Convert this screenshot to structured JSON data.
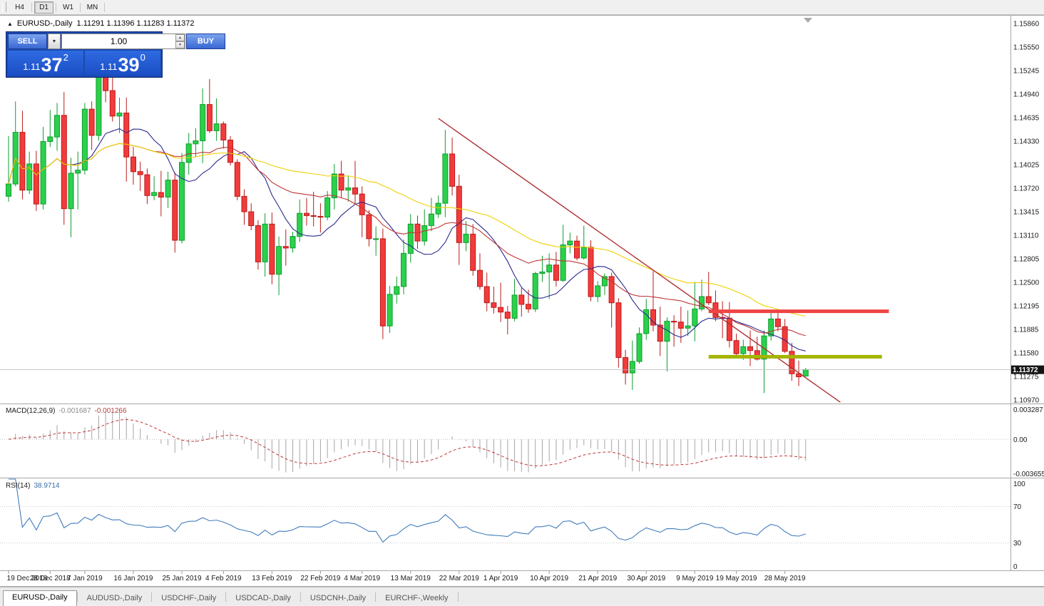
{
  "toolbar": {
    "timeframes": [
      "H4",
      "D1",
      "W1",
      "MN"
    ],
    "active_timeframe": "D1"
  },
  "chart_header": {
    "symbol": "EURUSD-,Daily",
    "ohlc": "1.11291 1.11396 1.11283 1.11372"
  },
  "icons": {
    "panel_toggle": "▲",
    "dropdown": "▼",
    "spin_up": "▲",
    "spin_down": "▼"
  },
  "trade_panel": {
    "sell_label": "SELL",
    "buy_label": "BUY",
    "volume": "1.00",
    "sell_price": {
      "big": "1.11",
      "mid": "37",
      "sup": "2"
    },
    "buy_price": {
      "big": "1.11",
      "mid": "39",
      "sup": "0"
    }
  },
  "macd_panel": {
    "name": "MACD(12,26,9)",
    "main_value": "-0.001687",
    "signal_value": "-0.001266",
    "axis": [
      "0.003287",
      "0.00",
      "-0.003655"
    ]
  },
  "rsi_panel": {
    "name": "RSI(14)",
    "value": "38.9714",
    "axis": [
      "100",
      "70",
      "30",
      "0"
    ]
  },
  "tabs": [
    {
      "label": "EURUSD-,Daily",
      "active": true
    },
    {
      "label": "AUDUSD-,Daily",
      "active": false
    },
    {
      "label": "USDCHF-,Daily",
      "active": false
    },
    {
      "label": "USDCAD-,Daily",
      "active": false
    },
    {
      "label": "USDCNH-,Daily",
      "active": false
    },
    {
      "label": "EURCHF-,Weekly",
      "active": false
    }
  ],
  "chart_data": {
    "type": "candlestick",
    "title": "EURUSD-,Daily",
    "ylim": [
      1.1097,
      1.1586
    ],
    "price_ticks": [
      "1.15860",
      "1.15550",
      "1.15245",
      "1.14940",
      "1.14635",
      "1.14330",
      "1.14025",
      "1.13720",
      "1.13415",
      "1.13110",
      "1.12805",
      "1.12500",
      "1.12195",
      "1.11885",
      "1.11580",
      "1.11275",
      "1.10970"
    ],
    "date_ticks": [
      {
        "i": 0,
        "label": "19 Dec 2018"
      },
      {
        "i": 6,
        "label": "28 Dec 2018"
      },
      {
        "i": 11,
        "label": "7 Jan 2019"
      },
      {
        "i": 18,
        "label": "16 Jan 2019"
      },
      {
        "i": 25,
        "label": "25 Jan 2019"
      },
      {
        "i": 31,
        "label": "4 Feb 2019"
      },
      {
        "i": 38,
        "label": "13 Feb 2019"
      },
      {
        "i": 45,
        "label": "22 Feb 2019"
      },
      {
        "i": 51,
        "label": "4 Mar 2019"
      },
      {
        "i": 58,
        "label": "13 Mar 2019"
      },
      {
        "i": 65,
        "label": "22 Mar 2019"
      },
      {
        "i": 71,
        "label": "1 Apr 2019"
      },
      {
        "i": 78,
        "label": "10 Apr 2019"
      },
      {
        "i": 85,
        "label": "21 Apr 2019"
      },
      {
        "i": 92,
        "label": "30 Apr 2019"
      },
      {
        "i": 99,
        "label": "9 May 2019"
      },
      {
        "i": 105,
        "label": "19 May 2019"
      },
      {
        "i": 112,
        "label": "28 May 2019"
      }
    ],
    "candles": [
      [
        1.1362,
        1.144,
        1.1355,
        1.1378
      ],
      [
        1.1378,
        1.1485,
        1.1375,
        1.1445
      ],
      [
        1.1445,
        1.1473,
        1.1358,
        1.137
      ],
      [
        1.137,
        1.142,
        1.1365,
        1.1404
      ],
      [
        1.1404,
        1.1421,
        1.1343,
        1.1352
      ],
      [
        1.1352,
        1.1452,
        1.1345,
        1.1433
      ],
      [
        1.1433,
        1.1474,
        1.1426,
        1.1439
      ],
      [
        1.1439,
        1.1483,
        1.1421,
        1.1467
      ],
      [
        1.1467,
        1.1497,
        1.1325,
        1.1346
      ],
      [
        1.1346,
        1.1412,
        1.1309,
        1.1392
      ],
      [
        1.1392,
        1.142,
        1.1345,
        1.1396
      ],
      [
        1.1396,
        1.1483,
        1.139,
        1.1475
      ],
      [
        1.1475,
        1.1485,
        1.1422,
        1.1441
      ],
      [
        1.1441,
        1.1571,
        1.1434,
        1.1545
      ],
      [
        1.1545,
        1.157,
        1.1484,
        1.1499
      ],
      [
        1.1499,
        1.1541,
        1.1459,
        1.1466
      ],
      [
        1.1466,
        1.149,
        1.1444,
        1.147
      ],
      [
        1.147,
        1.149,
        1.1381,
        1.1413
      ],
      [
        1.1413,
        1.1426,
        1.1377,
        1.1394
      ],
      [
        1.1394,
        1.1407,
        1.1369,
        1.139
      ],
      [
        1.139,
        1.1398,
        1.1352,
        1.1363
      ],
      [
        1.1363,
        1.1388,
        1.1357,
        1.1367
      ],
      [
        1.1367,
        1.1395,
        1.1336,
        1.1361
      ],
      [
        1.1361,
        1.1394,
        1.1347,
        1.1383
      ],
      [
        1.1383,
        1.1393,
        1.1289,
        1.1305
      ],
      [
        1.1305,
        1.1418,
        1.1301,
        1.1406
      ],
      [
        1.1406,
        1.1444,
        1.139,
        1.143
      ],
      [
        1.143,
        1.145,
        1.1413,
        1.1434
      ],
      [
        1.1434,
        1.1502,
        1.1405,
        1.1481
      ],
      [
        1.1481,
        1.1514,
        1.1444,
        1.1447
      ],
      [
        1.1447,
        1.1489,
        1.1434,
        1.1456
      ],
      [
        1.1456,
        1.1459,
        1.1424,
        1.1435
      ],
      [
        1.1435,
        1.144,
        1.1402,
        1.1406
      ],
      [
        1.1406,
        1.141,
        1.1357,
        1.1362
      ],
      [
        1.1362,
        1.1371,
        1.1325,
        1.1342
      ],
      [
        1.1342,
        1.1353,
        1.1318,
        1.1324
      ],
      [
        1.1324,
        1.1331,
        1.1267,
        1.1277
      ],
      [
        1.1277,
        1.134,
        1.1258,
        1.1326
      ],
      [
        1.1326,
        1.1341,
        1.1248,
        1.1261
      ],
      [
        1.1261,
        1.131,
        1.1234,
        1.1297
      ],
      [
        1.1297,
        1.1319,
        1.1272,
        1.1295
      ],
      [
        1.1295,
        1.1316,
        1.1289,
        1.131
      ],
      [
        1.131,
        1.1358,
        1.1303,
        1.134
      ],
      [
        1.134,
        1.136,
        1.1324,
        1.1337
      ],
      [
        1.1337,
        1.1368,
        1.1323,
        1.1336
      ],
      [
        1.1336,
        1.1353,
        1.1315,
        1.1335
      ],
      [
        1.1335,
        1.1369,
        1.1331,
        1.136
      ],
      [
        1.136,
        1.1404,
        1.1345,
        1.1391
      ],
      [
        1.1391,
        1.1408,
        1.136,
        1.137
      ],
      [
        1.137,
        1.1389,
        1.1355,
        1.1373
      ],
      [
        1.1373,
        1.1408,
        1.1352,
        1.1365
      ],
      [
        1.1365,
        1.1375,
        1.1309,
        1.1338
      ],
      [
        1.1338,
        1.1344,
        1.1297,
        1.1307
      ],
      [
        1.1307,
        1.1323,
        1.1285,
        1.1307
      ],
      [
        1.1307,
        1.132,
        1.1177,
        1.1194
      ],
      [
        1.1194,
        1.1246,
        1.1185,
        1.1235
      ],
      [
        1.1235,
        1.1258,
        1.1223,
        1.1245
      ],
      [
        1.1245,
        1.1306,
        1.1235,
        1.1288
      ],
      [
        1.1288,
        1.1339,
        1.1276,
        1.1326
      ],
      [
        1.1326,
        1.1337,
        1.1294,
        1.1304
      ],
      [
        1.1304,
        1.1345,
        1.1298,
        1.1324
      ],
      [
        1.1324,
        1.136,
        1.1317,
        1.1339
      ],
      [
        1.1339,
        1.1363,
        1.1334,
        1.1353
      ],
      [
        1.1353,
        1.1448,
        1.1335,
        1.1417
      ],
      [
        1.1417,
        1.1438,
        1.1363,
        1.1375
      ],
      [
        1.1375,
        1.139,
        1.1273,
        1.1302
      ],
      [
        1.1302,
        1.133,
        1.1291,
        1.1313
      ],
      [
        1.1313,
        1.1326,
        1.1259,
        1.1266
      ],
      [
        1.1266,
        1.1288,
        1.1241,
        1.1245
      ],
      [
        1.1245,
        1.1263,
        1.1213,
        1.1224
      ],
      [
        1.1224,
        1.1245,
        1.121,
        1.1218
      ],
      [
        1.1218,
        1.125,
        1.1199,
        1.1212
      ],
      [
        1.1212,
        1.122,
        1.1183,
        1.1204
      ],
      [
        1.1204,
        1.1255,
        1.12,
        1.1234
      ],
      [
        1.1234,
        1.1243,
        1.1206,
        1.1222
      ],
      [
        1.1222,
        1.1241,
        1.1211,
        1.1216
      ],
      [
        1.1216,
        1.1264,
        1.1212,
        1.1262
      ],
      [
        1.1262,
        1.1285,
        1.1251,
        1.1264
      ],
      [
        1.1264,
        1.1288,
        1.1229,
        1.1273
      ],
      [
        1.1273,
        1.129,
        1.1245,
        1.1253
      ],
      [
        1.1253,
        1.1325,
        1.1251,
        1.1299
      ],
      [
        1.1299,
        1.1315,
        1.1288,
        1.1304
      ],
      [
        1.1304,
        1.1311,
        1.1279,
        1.1282
      ],
      [
        1.1282,
        1.1324,
        1.128,
        1.1296
      ],
      [
        1.1296,
        1.1305,
        1.1226,
        1.1232
      ],
      [
        1.1232,
        1.1252,
        1.1225,
        1.1246
      ],
      [
        1.1246,
        1.1262,
        1.1234,
        1.1258
      ],
      [
        1.1258,
        1.1263,
        1.1192,
        1.1224
      ],
      [
        1.1224,
        1.123,
        1.114,
        1.1153
      ],
      [
        1.1153,
        1.1163,
        1.1118,
        1.1133
      ],
      [
        1.1133,
        1.1175,
        1.1111,
        1.1148
      ],
      [
        1.1148,
        1.1192,
        1.1145,
        1.1184
      ],
      [
        1.1184,
        1.1229,
        1.1176,
        1.1215
      ],
      [
        1.1215,
        1.1265,
        1.1187,
        1.1195
      ],
      [
        1.1195,
        1.1219,
        1.1155,
        1.1174
      ],
      [
        1.1174,
        1.1205,
        1.1135,
        1.12
      ],
      [
        1.12,
        1.1208,
        1.1167,
        1.1199
      ],
      [
        1.1199,
        1.1219,
        1.1172,
        1.1191
      ],
      [
        1.1191,
        1.1214,
        1.1181,
        1.1194
      ],
      [
        1.1194,
        1.1251,
        1.1174,
        1.1216
      ],
      [
        1.1216,
        1.1254,
        1.1213,
        1.1232
      ],
      [
        1.1232,
        1.1264,
        1.1221,
        1.1224
      ],
      [
        1.1224,
        1.124,
        1.12,
        1.1205
      ],
      [
        1.1205,
        1.1226,
        1.1178,
        1.1204
      ],
      [
        1.1204,
        1.1225,
        1.1166,
        1.1175
      ],
      [
        1.1175,
        1.1184,
        1.1155,
        1.1158
      ],
      [
        1.1158,
        1.1176,
        1.115,
        1.1167
      ],
      [
        1.1167,
        1.1188,
        1.1142,
        1.1162
      ],
      [
        1.1162,
        1.118,
        1.1149,
        1.1151
      ],
      [
        1.1151,
        1.1188,
        1.1107,
        1.1181
      ],
      [
        1.1181,
        1.1213,
        1.1175,
        1.1203
      ],
      [
        1.1203,
        1.1215,
        1.1187,
        1.1193
      ],
      [
        1.1193,
        1.1203,
        1.1159,
        1.1161
      ],
      [
        1.1161,
        1.1172,
        1.1123,
        1.1132
      ],
      [
        1.1132,
        1.1149,
        1.1116,
        1.1128
      ],
      [
        1.11291,
        1.11396,
        1.11283,
        1.11372
      ]
    ],
    "colors": {
      "bull": "#2bd14b",
      "bull_border": "#0e9c2e",
      "bear": "#f23b3b",
      "bear_border": "#bc1a1a",
      "ma_fast": "#2a2a90",
      "ma_mid": "#c03434",
      "ma_slow": "#f0d000",
      "trend": "#b03030",
      "resistance": "#ef4545",
      "support": "#a3b400",
      "macd_hist": "#a6a6a6",
      "macd_signal": "#c03636",
      "rsi": "#417cbe",
      "bid_line": "#b9b9b9",
      "price_tag_bg": "#151515",
      "price_tag_text": "#ffffff"
    },
    "moving_averages": [
      {
        "period": 10,
        "color_key": "ma_fast"
      },
      {
        "period": 22,
        "color_key": "ma_mid"
      },
      {
        "period": 45,
        "color_key": "ma_slow"
      }
    ],
    "trendline": {
      "from_index": 62,
      "from_price": 1.1463,
      "to_index": 120,
      "to_price": 1.1095
    },
    "hlines": [
      {
        "name": "resistance",
        "price": 1.1213,
        "from_index": 101,
        "to_index": 127
      },
      {
        "name": "support",
        "price": 1.1154,
        "from_index": 101,
        "to_index": 126
      }
    ],
    "current_price": "1.11372",
    "macd": {
      "fast": 12,
      "slow": 26,
      "signal": 9,
      "main": -0.001687,
      "signal_value": -0.001266,
      "range": [
        -0.003655,
        0.003287
      ]
    },
    "rsi": {
      "period": 14,
      "value": 38.9714,
      "levels": [
        70,
        30
      ],
      "range": [
        0,
        100
      ]
    }
  }
}
